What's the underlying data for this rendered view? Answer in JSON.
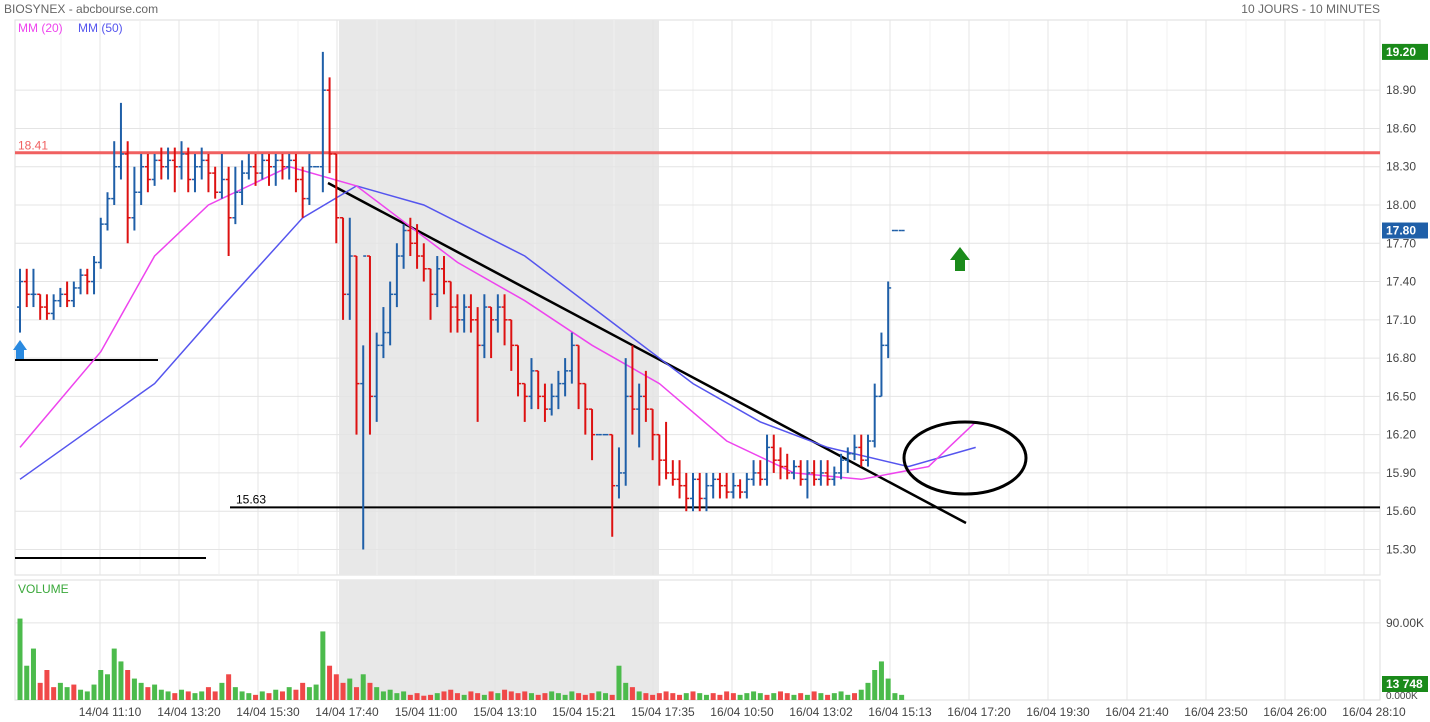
{
  "header": {
    "title": "BIOSYNEX - abcbourse.com",
    "period": "10 JOURS - 10 MINUTES"
  },
  "chart_data": {
    "type": "ohlc",
    "price_axis": {
      "ylim": [
        15.1,
        19.45
      ],
      "ticks": [
        "15.30",
        "15.60",
        "15.90",
        "16.20",
        "16.50",
        "16.80",
        "17.10",
        "17.40",
        "17.70",
        "18.00",
        "18.30",
        "18.60",
        "18.90"
      ],
      "last_price_label": "17.80",
      "high_label": "19.20"
    },
    "x_axis": {
      "tick_labels": [
        "14/04 11:10",
        "14/04 13:20",
        "14/04 15:30",
        "14/04 17:40",
        "15/04 11:00",
        "15/04 13:10",
        "15/04 15:21",
        "15/04 17:35",
        "16/04 10:50",
        "16/04 13:02",
        "16/04 15:13",
        "16/04 17:20",
        "16/04 19:30",
        "16/04 21:40",
        "16/04 23:50",
        "16/04 26:00",
        "16/04 28:10"
      ]
    },
    "legend": [
      {
        "name": "MM (20)",
        "color": "#ee44ee"
      },
      {
        "name": "MM (50)",
        "color": "#5555ee"
      }
    ],
    "colors": {
      "up": "#1f5fa8",
      "down": "#dd1111",
      "resistance": "#f06060",
      "volume_up": "#4cbb4c",
      "volume_down": "#f04848"
    },
    "annotations": {
      "resistance": {
        "value": 18.41,
        "label": "18.41"
      },
      "support": {
        "value": 15.63,
        "label": "15.63"
      }
    },
    "bars": [
      [
        17.2,
        17.5,
        17.0,
        17.4
      ],
      [
        17.4,
        17.5,
        17.2,
        17.3
      ],
      [
        17.3,
        17.5,
        17.2,
        17.3
      ],
      [
        17.3,
        17.3,
        17.1,
        17.2
      ],
      [
        17.2,
        17.3,
        17.1,
        17.15
      ],
      [
        17.15,
        17.3,
        17.1,
        17.25
      ],
      [
        17.25,
        17.35,
        17.2,
        17.3
      ],
      [
        17.3,
        17.4,
        17.2,
        17.25
      ],
      [
        17.25,
        17.4,
        17.2,
        17.35
      ],
      [
        17.35,
        17.5,
        17.3,
        17.45
      ],
      [
        17.45,
        17.5,
        17.3,
        17.4
      ],
      [
        17.4,
        17.6,
        17.3,
        17.55
      ],
      [
        17.55,
        17.9,
        17.5,
        17.85
      ],
      [
        17.85,
        18.1,
        17.8,
        18.05
      ],
      [
        18.05,
        18.5,
        18.0,
        18.3
      ],
      [
        18.3,
        18.8,
        18.2,
        18.4
      ],
      [
        18.4,
        18.5,
        17.7,
        17.9
      ],
      [
        17.9,
        18.3,
        17.8,
        18.1
      ],
      [
        18.1,
        18.4,
        18.0,
        18.3
      ],
      [
        18.3,
        18.4,
        18.1,
        18.2
      ],
      [
        18.2,
        18.4,
        18.15,
        18.35
      ],
      [
        18.35,
        18.45,
        18.2,
        18.3
      ],
      [
        18.3,
        18.45,
        18.2,
        18.35
      ],
      [
        18.35,
        18.45,
        18.1,
        18.3
      ],
      [
        18.3,
        18.5,
        18.2,
        18.4
      ],
      [
        18.4,
        18.45,
        18.1,
        18.2
      ],
      [
        18.2,
        18.4,
        18.1,
        18.3
      ],
      [
        18.3,
        18.45,
        18.2,
        18.35
      ],
      [
        18.35,
        18.4,
        18.1,
        18.25
      ],
      [
        18.25,
        18.3,
        18.05,
        18.1
      ],
      [
        18.1,
        18.4,
        18.05,
        18.2
      ],
      [
        18.2,
        18.3,
        17.6,
        17.9
      ],
      [
        17.9,
        18.3,
        17.85,
        18.1
      ],
      [
        18.1,
        18.35,
        18.0,
        18.25
      ],
      [
        18.25,
        18.4,
        18.2,
        18.3
      ],
      [
        18.3,
        18.4,
        18.15,
        18.25
      ],
      [
        18.25,
        18.4,
        18.2,
        18.35
      ],
      [
        18.35,
        18.4,
        18.15,
        18.3
      ],
      [
        18.3,
        18.4,
        18.15,
        18.35
      ],
      [
        18.35,
        18.4,
        18.2,
        18.3
      ],
      [
        18.3,
        18.4,
        18.2,
        18.35
      ],
      [
        18.35,
        18.4,
        18.1,
        18.2
      ],
      [
        18.2,
        18.3,
        17.9,
        18.05
      ],
      [
        18.05,
        18.4,
        18.0,
        18.3
      ],
      [
        18.3,
        18.3,
        18.3,
        18.3
      ],
      [
        18.3,
        19.2,
        18.1,
        18.9
      ],
      [
        18.9,
        19.0,
        18.25,
        18.4
      ],
      [
        18.4,
        18.4,
        17.7,
        17.9
      ],
      [
        17.9,
        17.9,
        17.1,
        17.3
      ],
      [
        17.3,
        17.9,
        17.1,
        17.6
      ],
      [
        17.6,
        17.6,
        16.2,
        16.6
      ],
      [
        16.6,
        16.9,
        15.3,
        17.6
      ],
      [
        17.6,
        17.6,
        16.2,
        16.5
      ],
      [
        16.5,
        17.0,
        16.3,
        16.9
      ],
      [
        16.9,
        17.2,
        16.8,
        17.0
      ],
      [
        17.0,
        17.4,
        16.9,
        17.3
      ],
      [
        17.3,
        17.7,
        17.2,
        17.6
      ],
      [
        17.6,
        17.85,
        17.5,
        17.8
      ],
      [
        17.8,
        17.9,
        17.6,
        17.7
      ],
      [
        17.7,
        17.85,
        17.5,
        17.6
      ],
      [
        17.6,
        17.7,
        17.4,
        17.5
      ],
      [
        17.5,
        17.5,
        17.1,
        17.3
      ],
      [
        17.3,
        17.6,
        17.2,
        17.5
      ],
      [
        17.5,
        17.6,
        17.3,
        17.4
      ],
      [
        17.4,
        17.4,
        17.0,
        17.2
      ],
      [
        17.2,
        17.3,
        17.0,
        17.1
      ],
      [
        17.1,
        17.3,
        17.0,
        17.2
      ],
      [
        17.2,
        17.3,
        17.0,
        17.1
      ],
      [
        17.1,
        17.2,
        16.3,
        16.9
      ],
      [
        16.9,
        17.3,
        16.8,
        17.2
      ],
      [
        17.2,
        17.2,
        16.8,
        17.1
      ],
      [
        17.1,
        17.3,
        17.0,
        17.2
      ],
      [
        17.2,
        17.3,
        16.9,
        17.1
      ],
      [
        17.1,
        17.1,
        16.7,
        16.9
      ],
      [
        16.9,
        16.9,
        16.5,
        16.6
      ],
      [
        16.6,
        16.6,
        16.3,
        16.5
      ],
      [
        16.5,
        16.8,
        16.4,
        16.7
      ],
      [
        16.7,
        16.7,
        16.4,
        16.5
      ],
      [
        16.5,
        16.6,
        16.3,
        16.4
      ],
      [
        16.4,
        16.6,
        16.35,
        16.5
      ],
      [
        16.5,
        16.7,
        16.4,
        16.6
      ],
      [
        16.6,
        16.8,
        16.5,
        16.7
      ],
      [
        16.7,
        17.0,
        16.6,
        16.9
      ],
      [
        16.9,
        16.9,
        16.4,
        16.6
      ],
      [
        16.6,
        16.6,
        16.2,
        16.4
      ],
      [
        16.4,
        16.4,
        16.0,
        16.2
      ],
      [
        16.2,
        16.2,
        16.2,
        16.2
      ],
      [
        16.2,
        16.2,
        16.2,
        16.2
      ],
      [
        16.2,
        16.2,
        15.4,
        15.8
      ],
      [
        15.8,
        16.1,
        15.7,
        15.9
      ],
      [
        15.9,
        16.8,
        15.8,
        16.5
      ],
      [
        16.5,
        16.9,
        16.2,
        16.4
      ],
      [
        16.4,
        16.6,
        16.1,
        16.5
      ],
      [
        16.5,
        16.7,
        16.3,
        16.4
      ],
      [
        16.4,
        16.4,
        16.0,
        16.2
      ],
      [
        16.2,
        16.2,
        15.8,
        16.0
      ],
      [
        16.0,
        16.3,
        15.85,
        15.9
      ],
      [
        15.9,
        16.0,
        15.8,
        15.85
      ],
      [
        15.85,
        16.0,
        15.7,
        15.8
      ],
      [
        15.8,
        15.9,
        15.6,
        15.7
      ],
      [
        15.7,
        15.9,
        15.6,
        15.85
      ],
      [
        15.85,
        15.9,
        15.6,
        15.7
      ],
      [
        15.7,
        15.9,
        15.6,
        15.8
      ],
      [
        15.8,
        15.9,
        15.7,
        15.85
      ],
      [
        15.85,
        15.9,
        15.7,
        15.8
      ],
      [
        15.8,
        15.9,
        15.7,
        15.75
      ],
      [
        15.75,
        15.9,
        15.7,
        15.8
      ],
      [
        15.8,
        15.85,
        15.7,
        15.75
      ],
      [
        15.75,
        15.9,
        15.7,
        15.85
      ],
      [
        15.85,
        16.0,
        15.8,
        15.9
      ],
      [
        15.9,
        16.0,
        15.8,
        15.85
      ],
      [
        15.85,
        16.2,
        15.8,
        16.1
      ],
      [
        16.1,
        16.2,
        15.9,
        16.0
      ],
      [
        16.0,
        16.1,
        15.85,
        15.95
      ],
      [
        15.95,
        16.05,
        15.85,
        15.9
      ],
      [
        15.9,
        16.0,
        15.85,
        15.95
      ],
      [
        15.95,
        16.0,
        15.8,
        15.85
      ],
      [
        15.85,
        16.0,
        15.7,
        15.9
      ],
      [
        15.9,
        16.0,
        15.8,
        15.85
      ],
      [
        15.85,
        16.0,
        15.8,
        15.9
      ],
      [
        15.9,
        16.0,
        15.8,
        15.85
      ],
      [
        15.85,
        15.95,
        15.8,
        15.9
      ],
      [
        15.9,
        16.05,
        15.85,
        16.0
      ],
      [
        16.0,
        16.1,
        15.9,
        16.05
      ],
      [
        16.05,
        16.2,
        16.0,
        16.1
      ],
      [
        16.1,
        16.2,
        15.95,
        16.0
      ],
      [
        16.0,
        16.2,
        15.95,
        16.15
      ],
      [
        16.15,
        16.6,
        16.1,
        16.5
      ],
      [
        16.5,
        17.0,
        16.5,
        16.9
      ],
      [
        16.9,
        17.4,
        16.8,
        17.35
      ],
      [
        17.8,
        17.8,
        17.8,
        17.8
      ],
      [
        17.8,
        17.8,
        17.8,
        17.8
      ]
    ],
    "ma20": [
      [
        0,
        16.1
      ],
      [
        12,
        16.85
      ],
      [
        20,
        17.6
      ],
      [
        28,
        18.0
      ],
      [
        40,
        18.3
      ],
      [
        50,
        18.15
      ],
      [
        65,
        17.55
      ],
      [
        75,
        17.25
      ],
      [
        85,
        16.9
      ],
      [
        95,
        16.6
      ],
      [
        105,
        16.15
      ],
      [
        115,
        15.9
      ],
      [
        125,
        15.85
      ],
      [
        135,
        15.95
      ],
      [
        142,
        16.3
      ]
    ],
    "ma50": [
      [
        0,
        15.85
      ],
      [
        20,
        16.6
      ],
      [
        30,
        17.2
      ],
      [
        42,
        17.9
      ],
      [
        50,
        18.15
      ],
      [
        60,
        18.0
      ],
      [
        75,
        17.6
      ],
      [
        90,
        17.0
      ],
      [
        100,
        16.6
      ],
      [
        110,
        16.3
      ],
      [
        120,
        16.1
      ],
      [
        132,
        15.95
      ],
      [
        142,
        16.1
      ]
    ],
    "volume": {
      "label": "VOLUME",
      "tick": "90.00K",
      "last_label": "13 748",
      "zero_label": "0.000K",
      "values": [
        95,
        40,
        60,
        20,
        35,
        15,
        20,
        15,
        18,
        12,
        10,
        18,
        35,
        30,
        60,
        45,
        35,
        25,
        20,
        15,
        18,
        12,
        10,
        8,
        12,
        10,
        8,
        10,
        15,
        10,
        20,
        30,
        15,
        10,
        8,
        6,
        10,
        8,
        12,
        10,
        15,
        12,
        20,
        15,
        18,
        80,
        40,
        30,
        20,
        25,
        15,
        30,
        20,
        15,
        10,
        12,
        8,
        10,
        6,
        8,
        5,
        6,
        8,
        10,
        12,
        8,
        6,
        10,
        8,
        6,
        10,
        8,
        12,
        10,
        8,
        10,
        8,
        6,
        8,
        10,
        8,
        6,
        10,
        8,
        6,
        8,
        10,
        8,
        6,
        40,
        20,
        15,
        10,
        8,
        6,
        8,
        10,
        8,
        6,
        8,
        10,
        8,
        6,
        8,
        6,
        10,
        8,
        6,
        8,
        10,
        8,
        6,
        8,
        10,
        8,
        6,
        8,
        6,
        10,
        8,
        6,
        8,
        10,
        6,
        8,
        12,
        20,
        35,
        45,
        25,
        8,
        6
      ],
      "up": [
        1,
        1,
        1,
        0,
        0,
        0,
        1,
        1,
        0,
        1,
        1,
        1,
        1,
        1,
        1,
        1,
        0,
        1,
        1,
        0,
        1,
        1,
        1,
        0,
        1,
        0,
        1,
        1,
        0,
        0,
        1,
        0,
        1,
        1,
        1,
        0,
        1,
        0,
        1,
        0,
        1,
        0,
        0,
        1,
        1,
        1,
        0,
        0,
        0,
        1,
        0,
        1,
        0,
        1,
        1,
        1,
        1,
        1,
        0,
        0,
        0,
        0,
        1,
        0,
        0,
        0,
        1,
        0,
        0,
        1,
        0,
        1,
        0,
        0,
        0,
        0,
        1,
        0,
        0,
        1,
        1,
        1,
        1,
        0,
        0,
        0,
        1,
        1,
        0,
        1,
        1,
        0,
        1,
        0,
        0,
        0,
        0,
        0,
        0,
        1,
        0,
        1,
        1,
        0,
        0,
        0,
        0,
        1,
        1,
        1,
        1,
        0,
        1,
        0,
        0,
        1,
        0,
        1,
        0,
        1,
        0,
        1,
        1,
        1,
        0,
        1,
        1,
        1,
        1,
        1,
        1,
        1
      ]
    }
  }
}
